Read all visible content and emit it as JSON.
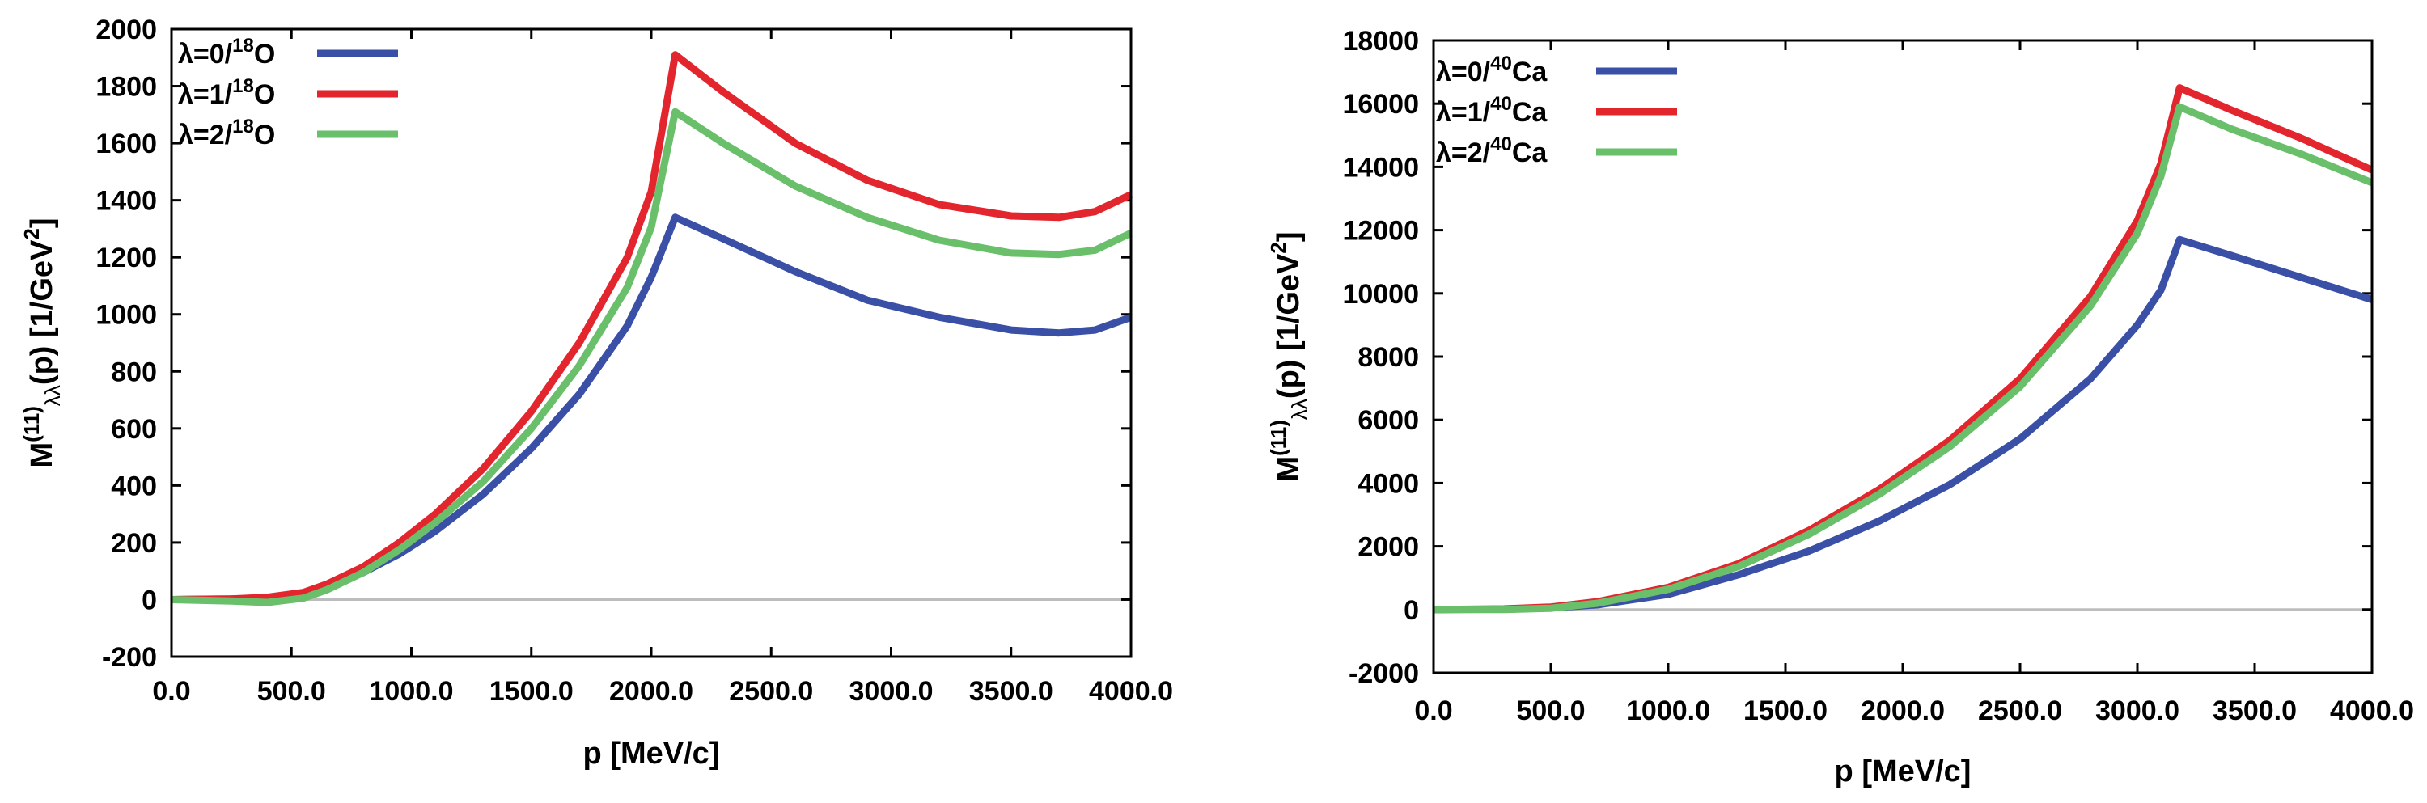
{
  "chart_data": [
    {
      "type": "line",
      "title": "",
      "xlabel": "p [MeV/c]",
      "ylabel": {
        "main": "M",
        "sup": "(11)",
        "sub": "λλ",
        "rest": "(p) [1/GeV",
        "rest_sup": "2",
        "close": "]"
      },
      "xlim": [
        0,
        4000
      ],
      "ylim": [
        -200,
        2000
      ],
      "xticks": [
        0,
        500,
        1000,
        1500,
        2000,
        2500,
        3000,
        3500,
        4000
      ],
      "xtick_labels": [
        "0.0",
        "500.0",
        "1000.0",
        "1500.0",
        "2000.0",
        "2500.0",
        "3000.0",
        "3500.0",
        "4000.0"
      ],
      "yticks": [
        -200,
        0,
        200,
        400,
        600,
        800,
        1000,
        1200,
        1400,
        1600,
        1800,
        2000
      ],
      "ytick_labels": [
        "-200",
        "0",
        "200",
        "400",
        "600",
        "800",
        "1000",
        "1200",
        "1400",
        "1600",
        "1800",
        "2000"
      ],
      "zero_line": true,
      "legend_position": "top-left",
      "series": [
        {
          "name": "λ=0/18O",
          "label": {
            "prefix": "λ=0/",
            "sup": "18",
            "nucleus": "O"
          },
          "color": "#3a4fa6",
          "x": [
            0,
            250,
            400,
            550,
            650,
            800,
            950,
            1100,
            1300,
            1500,
            1700,
            1900,
            2000,
            2100,
            2300,
            2600,
            2900,
            3200,
            3500,
            3700,
            3850,
            4000
          ],
          "y": [
            0,
            2,
            5,
            20,
            45,
            95,
            160,
            240,
            370,
            530,
            720,
            960,
            1130,
            1340,
            1265,
            1150,
            1050,
            990,
            945,
            935,
            945,
            990
          ]
        },
        {
          "name": "λ=1/18O",
          "label": {
            "prefix": "λ=1/",
            "sup": "18",
            "nucleus": "O"
          },
          "color": "#e3262e",
          "x": [
            0,
            250,
            400,
            550,
            650,
            800,
            950,
            1100,
            1300,
            1500,
            1700,
            1900,
            2000,
            2100,
            2300,
            2600,
            2900,
            3200,
            3500,
            3700,
            3850,
            4000
          ],
          "y": [
            0,
            2,
            8,
            25,
            55,
            115,
            200,
            300,
            460,
            660,
            900,
            1200,
            1430,
            1910,
            1780,
            1600,
            1470,
            1385,
            1345,
            1340,
            1360,
            1420
          ]
        },
        {
          "name": "λ=2/18O",
          "label": {
            "prefix": "λ=2/",
            "sup": "18",
            "nucleus": "O"
          },
          "color": "#6abf6a",
          "x": [
            0,
            250,
            400,
            550,
            650,
            800,
            950,
            1100,
            1300,
            1500,
            1700,
            1900,
            2000,
            2100,
            2300,
            2600,
            2900,
            3200,
            3500,
            3700,
            3850,
            4000
          ],
          "y": [
            0,
            -5,
            -10,
            5,
            35,
            95,
            175,
            270,
            415,
            600,
            820,
            1095,
            1305,
            1710,
            1600,
            1450,
            1340,
            1260,
            1215,
            1210,
            1225,
            1285
          ]
        }
      ]
    },
    {
      "type": "line",
      "title": "",
      "xlabel": "p [MeV/c]",
      "ylabel": {
        "main": "M",
        "sup": "(11)",
        "sub": "λλ",
        "rest": "(p) [1/GeV",
        "rest_sup": "2",
        "close": "]"
      },
      "xlim": [
        0,
        4000
      ],
      "ylim": [
        -2000,
        18000
      ],
      "xticks": [
        0,
        500,
        1000,
        1500,
        2000,
        2500,
        3000,
        3500,
        4000
      ],
      "xtick_labels": [
        "0.0",
        "500.0",
        "1000.0",
        "1500.0",
        "2000.0",
        "2500.0",
        "3000.0",
        "3500.0",
        "4000.0"
      ],
      "yticks": [
        -2000,
        0,
        2000,
        4000,
        6000,
        8000,
        10000,
        12000,
        14000,
        16000,
        18000
      ],
      "ytick_labels": [
        "-2000",
        "0",
        "2000",
        "4000",
        "6000",
        "8000",
        "10000",
        "12000",
        "14000",
        "16000",
        "18000"
      ],
      "zero_line": true,
      "legend_position": "top-left",
      "series": [
        {
          "name": "λ=0/40Ca",
          "label": {
            "prefix": "λ=0/",
            "sup": "40",
            "nucleus": "Ca"
          },
          "color": "#3a4fa6",
          "x": [
            0,
            300,
            500,
            700,
            1000,
            1300,
            1600,
            1900,
            2200,
            2500,
            2800,
            3000,
            3100,
            3180,
            3400,
            3700,
            4000
          ],
          "y": [
            0,
            10,
            50,
            150,
            480,
            1100,
            1850,
            2800,
            3950,
            5400,
            7300,
            9000,
            10100,
            11700,
            11200,
            10500,
            9800
          ]
        },
        {
          "name": "λ=1/40Ca",
          "label": {
            "prefix": "λ=1/",
            "sup": "40",
            "nucleus": "Ca"
          },
          "color": "#e3262e",
          "x": [
            0,
            300,
            500,
            700,
            1000,
            1300,
            1600,
            1900,
            2200,
            2500,
            2800,
            3000,
            3100,
            3180,
            3400,
            3700,
            4000
          ],
          "y": [
            0,
            20,
            80,
            250,
            700,
            1450,
            2500,
            3800,
            5350,
            7300,
            9900,
            12300,
            14100,
            16500,
            15800,
            14900,
            13900
          ]
        },
        {
          "name": "λ=2/40Ca",
          "label": {
            "prefix": "λ=2/",
            "sup": "40",
            "nucleus": "Ca"
          },
          "color": "#6abf6a",
          "x": [
            0,
            300,
            500,
            700,
            1000,
            1300,
            1600,
            1900,
            2200,
            2500,
            2800,
            3000,
            3100,
            3180,
            3400,
            3700,
            4000
          ],
          "y": [
            0,
            0,
            40,
            200,
            640,
            1360,
            2380,
            3650,
            5150,
            7050,
            9600,
            11900,
            13700,
            15900,
            15200,
            14400,
            13500
          ]
        }
      ]
    }
  ]
}
